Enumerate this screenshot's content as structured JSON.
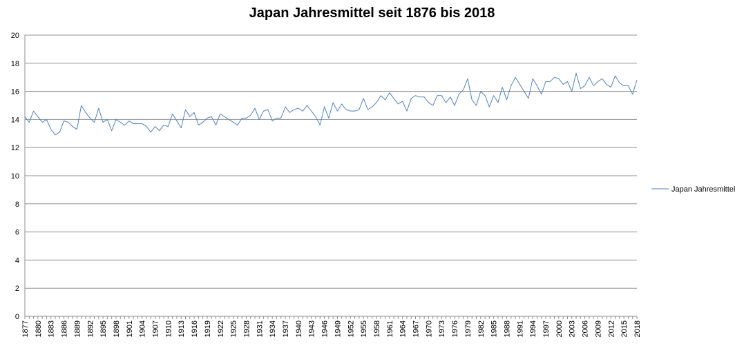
{
  "chart_data": {
    "type": "line",
    "title": "Japan Jahresmittel seit 1876 bis 2018",
    "xlabel": "",
    "ylabel": "",
    "ylim": [
      0,
      20
    ],
    "yticks": [
      0,
      2,
      4,
      6,
      8,
      10,
      12,
      14,
      16,
      18,
      20
    ],
    "grid": true,
    "legend_position": "right",
    "x_tick_labels": [
      "1877",
      "1880",
      "1883",
      "1886",
      "1889",
      "1892",
      "1895",
      "1898",
      "1901",
      "1904",
      "1907",
      "1910",
      "1913",
      "1916",
      "1919",
      "1922",
      "1925",
      "1928",
      "1931",
      "1934",
      "1937",
      "1940",
      "1943",
      "1946",
      "1949",
      "1952",
      "1955",
      "1958",
      "1961",
      "1964",
      "1967",
      "1970",
      "1973",
      "1976",
      "1979",
      "1982",
      "1985",
      "1988",
      "1991",
      "1994",
      "1997",
      "2000",
      "2003",
      "2006",
      "2009",
      "2012",
      "2015",
      "2018"
    ],
    "x_start": 1877,
    "x_end": 2018,
    "series": [
      {
        "name": "Japan Jahresmittel",
        "color": "#4f81bd",
        "values": [
          14.2,
          13.8,
          14.6,
          14.2,
          13.8,
          14.0,
          13.3,
          12.9,
          13.1,
          13.9,
          13.8,
          13.5,
          13.3,
          15.0,
          14.5,
          14.1,
          13.8,
          14.8,
          13.8,
          14.0,
          13.2,
          14.0,
          13.8,
          13.6,
          13.9,
          13.7,
          13.7,
          13.7,
          13.5,
          13.1,
          13.5,
          13.2,
          13.6,
          13.5,
          14.4,
          13.9,
          13.4,
          14.7,
          14.2,
          14.5,
          13.6,
          13.8,
          14.1,
          14.2,
          13.6,
          14.4,
          14.2,
          14.0,
          13.8,
          13.6,
          14.1,
          14.1,
          14.3,
          14.8,
          14.0,
          14.6,
          14.7,
          13.9,
          14.1,
          14.1,
          14.9,
          14.5,
          14.7,
          14.8,
          14.6,
          15.0,
          14.6,
          14.2,
          13.6,
          14.9,
          14.1,
          15.2,
          14.6,
          15.1,
          14.7,
          14.6,
          14.6,
          14.7,
          15.5,
          14.7,
          14.9,
          15.2,
          15.7,
          15.4,
          15.9,
          15.5,
          15.1,
          15.3,
          14.6,
          15.5,
          15.7,
          15.6,
          15.6,
          15.2,
          15.0,
          15.7,
          15.7,
          15.2,
          15.6,
          15.0,
          15.8,
          16.1,
          16.9,
          15.4,
          15.0,
          16.0,
          15.7,
          14.9,
          15.7,
          15.2,
          16.3,
          15.4,
          16.4,
          17.0,
          16.5,
          16.0,
          15.5,
          16.9,
          16.4,
          15.8,
          16.7,
          16.7,
          17.0,
          16.9,
          16.5,
          16.7,
          16.0,
          17.3,
          16.2,
          16.4,
          17.0,
          16.4,
          16.7,
          16.9,
          16.5,
          16.3,
          17.1,
          16.6,
          16.4,
          16.4,
          15.8,
          16.8
        ]
      }
    ]
  }
}
